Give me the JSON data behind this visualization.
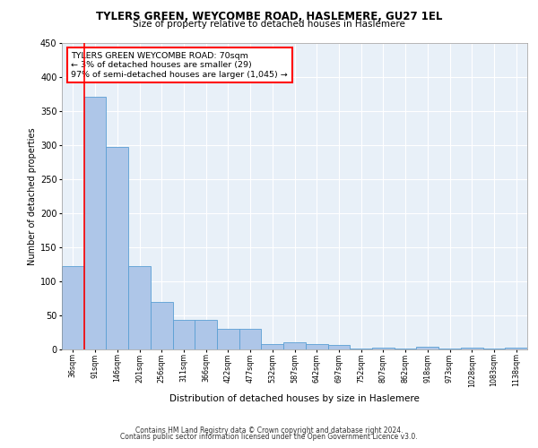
{
  "title1": "TYLERS GREEN, WEYCOMBE ROAD, HASLEMERE, GU27 1EL",
  "title2": "Size of property relative to detached houses in Haslemere",
  "xlabel": "Distribution of detached houses by size in Haslemere",
  "ylabel": "Number of detached properties",
  "categories": [
    "36sqm",
    "91sqm",
    "146sqm",
    "201sqm",
    "256sqm",
    "311sqm",
    "366sqm",
    "422sqm",
    "477sqm",
    "532sqm",
    "587sqm",
    "642sqm",
    "697sqm",
    "752sqm",
    "807sqm",
    "862sqm",
    "918sqm",
    "973sqm",
    "1028sqm",
    "1083sqm",
    "1138sqm"
  ],
  "values": [
    122,
    370,
    297,
    122,
    70,
    43,
    43,
    30,
    30,
    8,
    10,
    8,
    6,
    1,
    3,
    1,
    4,
    1,
    3,
    1,
    3
  ],
  "bar_color": "#aec6e8",
  "bar_edge_color": "#5a9fd4",
  "bg_color": "#e8f0f8",
  "annotation_line1": "TYLERS GREEN WEYCOMBE ROAD: 70sqm",
  "annotation_line2": "← 3% of detached houses are smaller (29)",
  "annotation_line3": "97% of semi-detached houses are larger (1,045) →",
  "annotation_box_color": "white",
  "annotation_box_edge": "red",
  "vline_color": "red",
  "footer1": "Contains HM Land Registry data © Crown copyright and database right 2024.",
  "footer2": "Contains public sector information licensed under the Open Government Licence v3.0.",
  "ylim": [
    0,
    450
  ],
  "yticks": [
    0,
    50,
    100,
    150,
    200,
    250,
    300,
    350,
    400,
    450
  ]
}
